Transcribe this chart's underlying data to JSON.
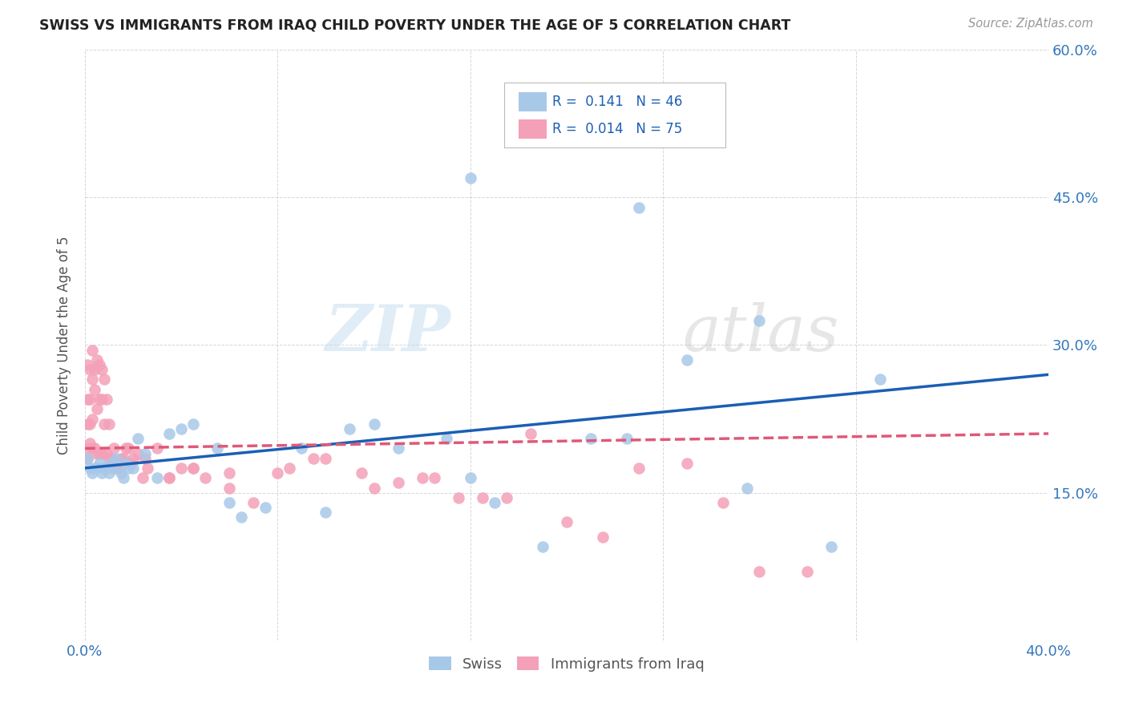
{
  "title": "SWISS VS IMMIGRANTS FROM IRAQ CHILD POVERTY UNDER THE AGE OF 5 CORRELATION CHART",
  "source": "Source: ZipAtlas.com",
  "ylabel": "Child Poverty Under the Age of 5",
  "xlim": [
    0.0,
    0.4
  ],
  "ylim": [
    0.0,
    0.6
  ],
  "xticks": [
    0.0,
    0.08,
    0.16,
    0.24,
    0.32,
    0.4
  ],
  "yticks": [
    0.0,
    0.15,
    0.3,
    0.45,
    0.6
  ],
  "xtick_labels": [
    "0.0%",
    "",
    "",
    "",
    "",
    "40.0%"
  ],
  "ytick_labels": [
    "",
    "15.0%",
    "30.0%",
    "45.0%",
    "60.0%"
  ],
  "swiss_color": "#a8c8e8",
  "iraq_color": "#f4a0b8",
  "swiss_line_color": "#1a5fb4",
  "iraq_line_color": "#e05878",
  "watermark_zip": "ZIP",
  "watermark_atlas": "atlas",
  "legend_swiss_R": "0.141",
  "legend_swiss_N": "46",
  "legend_iraq_R": "0.014",
  "legend_iraq_N": "75",
  "swiss_x": [
    0.001,
    0.002,
    0.003,
    0.004,
    0.005,
    0.006,
    0.007,
    0.008,
    0.009,
    0.01,
    0.011,
    0.012,
    0.013,
    0.015,
    0.016,
    0.017,
    0.018,
    0.02,
    0.022,
    0.025,
    0.03,
    0.035,
    0.04,
    0.045,
    0.055,
    0.06,
    0.065,
    0.075,
    0.09,
    0.1,
    0.11,
    0.12,
    0.13,
    0.15,
    0.16,
    0.17,
    0.19,
    0.21,
    0.225,
    0.25,
    0.275,
    0.31,
    0.33,
    0.16,
    0.23,
    0.28
  ],
  "swiss_y": [
    0.185,
    0.175,
    0.17,
    0.175,
    0.175,
    0.18,
    0.17,
    0.175,
    0.175,
    0.17,
    0.18,
    0.175,
    0.185,
    0.17,
    0.165,
    0.18,
    0.175,
    0.175,
    0.205,
    0.19,
    0.165,
    0.21,
    0.215,
    0.22,
    0.195,
    0.14,
    0.125,
    0.135,
    0.195,
    0.13,
    0.215,
    0.22,
    0.195,
    0.205,
    0.165,
    0.14,
    0.095,
    0.205,
    0.205,
    0.285,
    0.155,
    0.095,
    0.265,
    0.47,
    0.44,
    0.325
  ],
  "iraq_x": [
    0.001,
    0.001,
    0.001,
    0.001,
    0.001,
    0.002,
    0.002,
    0.002,
    0.002,
    0.003,
    0.003,
    0.003,
    0.003,
    0.004,
    0.004,
    0.004,
    0.005,
    0.005,
    0.005,
    0.006,
    0.006,
    0.006,
    0.007,
    0.007,
    0.007,
    0.008,
    0.008,
    0.009,
    0.009,
    0.01,
    0.01,
    0.011,
    0.012,
    0.013,
    0.014,
    0.015,
    0.016,
    0.017,
    0.018,
    0.019,
    0.02,
    0.022,
    0.024,
    0.026,
    0.03,
    0.035,
    0.04,
    0.045,
    0.05,
    0.06,
    0.07,
    0.085,
    0.1,
    0.115,
    0.13,
    0.145,
    0.155,
    0.165,
    0.175,
    0.185,
    0.2,
    0.215,
    0.23,
    0.25,
    0.265,
    0.28,
    0.3,
    0.025,
    0.035,
    0.045,
    0.06,
    0.08,
    0.095,
    0.12,
    0.14
  ],
  "iraq_y": [
    0.185,
    0.195,
    0.22,
    0.245,
    0.28,
    0.2,
    0.22,
    0.245,
    0.275,
    0.195,
    0.225,
    0.265,
    0.295,
    0.195,
    0.255,
    0.275,
    0.19,
    0.235,
    0.285,
    0.19,
    0.245,
    0.28,
    0.19,
    0.245,
    0.275,
    0.22,
    0.265,
    0.19,
    0.245,
    0.185,
    0.22,
    0.185,
    0.195,
    0.175,
    0.175,
    0.185,
    0.185,
    0.195,
    0.195,
    0.18,
    0.185,
    0.19,
    0.165,
    0.175,
    0.195,
    0.165,
    0.175,
    0.175,
    0.165,
    0.155,
    0.14,
    0.175,
    0.185,
    0.17,
    0.16,
    0.165,
    0.145,
    0.145,
    0.145,
    0.21,
    0.12,
    0.105,
    0.175,
    0.18,
    0.14,
    0.07,
    0.07,
    0.185,
    0.165,
    0.175,
    0.17,
    0.17,
    0.185,
    0.155,
    0.165
  ]
}
